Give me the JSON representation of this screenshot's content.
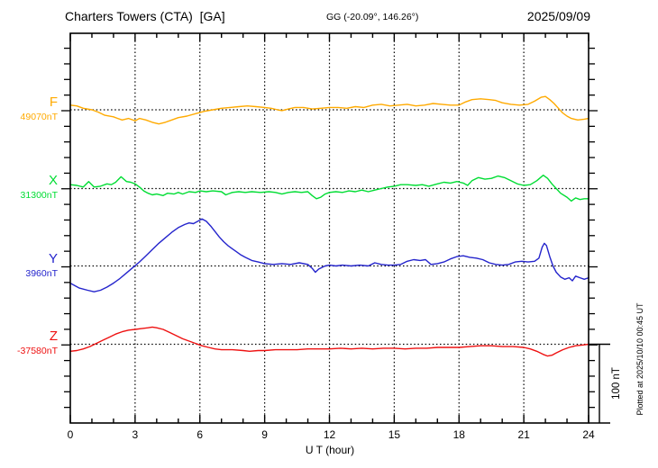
{
  "header": {
    "station_title": "Charters Towers (CTA)  [GA]",
    "coordinates": "GG (-20.09°, 146.26°)",
    "date": "2025/09/09"
  },
  "axis": {
    "xlabel": "U T (hour)",
    "x_tick_labels": [
      "0",
      "3",
      "6",
      "9",
      "12",
      "15",
      "18",
      "21",
      "24"
    ],
    "x_tick_hours": [
      0,
      3,
      6,
      9,
      12,
      15,
      18,
      21,
      24
    ],
    "scale_bar_label": "100 nT"
  },
  "footer_note": "Plotted at 2025/10/10 00:45 UT",
  "components": [
    {
      "label": "F",
      "value_label": "49070nT",
      "color": "#ffaa00"
    },
    {
      "label": "X",
      "value_label": "31300nT",
      "color": "#00dd33"
    },
    {
      "label": "Y",
      "value_label": "3960nT",
      "color": "#2424cc"
    },
    {
      "label": "Z",
      "value_label": "-37580nT",
      "color": "#ee1111"
    }
  ],
  "chart_data": {
    "type": "line",
    "title": "Charters Towers (CTA)  [GA] magnetogram 2025/09/09",
    "xlabel": "U T (hour)",
    "x_range": [
      0,
      24
    ],
    "grid_hours": [
      3,
      6,
      9,
      12,
      15,
      18,
      21
    ],
    "minor_tick_hours": 1,
    "y_division_nT": 20,
    "scale_bar_nT": 100,
    "legend_position": "left",
    "series": [
      {
        "name": "F",
        "baseline_nT": 49070,
        "color": "#ffaa00",
        "points": [
          [
            0,
            6
          ],
          [
            0.3,
            5
          ],
          [
            0.6,
            2
          ],
          [
            1,
            0
          ],
          [
            1.3,
            -3
          ],
          [
            1.6,
            -7
          ],
          [
            2,
            -9
          ],
          [
            2.2,
            -11
          ],
          [
            2.4,
            -13
          ],
          [
            2.7,
            -11
          ],
          [
            3,
            -14
          ],
          [
            3.2,
            -11
          ],
          [
            3.5,
            -13
          ],
          [
            3.8,
            -16
          ],
          [
            4.1,
            -18
          ],
          [
            4.4,
            -16
          ],
          [
            4.7,
            -13
          ],
          [
            5,
            -10
          ],
          [
            5.4,
            -8
          ],
          [
            5.8,
            -5
          ],
          [
            6.2,
            -2
          ],
          [
            6.6,
            0
          ],
          [
            7,
            2
          ],
          [
            7.4,
            3
          ],
          [
            7.8,
            4
          ],
          [
            8.2,
            5
          ],
          [
            8.6,
            4
          ],
          [
            9,
            3
          ],
          [
            9.3,
            2
          ],
          [
            9.6,
            0
          ],
          [
            9.8,
            -1
          ],
          [
            10.1,
            1
          ],
          [
            10.4,
            3
          ],
          [
            10.8,
            3
          ],
          [
            11.2,
            1
          ],
          [
            11.6,
            2
          ],
          [
            12,
            3
          ],
          [
            12.4,
            3
          ],
          [
            12.8,
            2
          ],
          [
            13.2,
            4
          ],
          [
            13.6,
            3
          ],
          [
            14,
            6
          ],
          [
            14.4,
            7
          ],
          [
            14.8,
            5
          ],
          [
            15.2,
            6
          ],
          [
            15.6,
            7
          ],
          [
            16,
            5
          ],
          [
            16.4,
            6
          ],
          [
            16.8,
            8
          ],
          [
            17.2,
            7
          ],
          [
            17.6,
            6
          ],
          [
            18,
            6
          ],
          [
            18.3,
            10
          ],
          [
            18.6,
            13
          ],
          [
            19,
            14
          ],
          [
            19.4,
            13
          ],
          [
            19.7,
            12
          ],
          [
            20,
            9
          ],
          [
            20.4,
            7
          ],
          [
            20.8,
            6
          ],
          [
            21.2,
            7
          ],
          [
            21.5,
            11
          ],
          [
            21.8,
            16
          ],
          [
            22,
            17
          ],
          [
            22.2,
            13
          ],
          [
            22.4,
            8
          ],
          [
            22.6,
            2
          ],
          [
            22.8,
            -4
          ],
          [
            23,
            -8
          ],
          [
            23.2,
            -11
          ],
          [
            23.5,
            -13
          ],
          [
            23.8,
            -12
          ],
          [
            24,
            -11
          ]
        ]
      },
      {
        "name": "X",
        "baseline_nT": 31300,
        "color": "#00dd33",
        "points": [
          [
            0,
            5
          ],
          [
            0.3,
            4
          ],
          [
            0.6,
            2
          ],
          [
            0.85,
            9
          ],
          [
            1.1,
            2
          ],
          [
            1.4,
            3
          ],
          [
            1.7,
            6
          ],
          [
            1.9,
            5
          ],
          [
            2.1,
            8
          ],
          [
            2.35,
            15
          ],
          [
            2.6,
            9
          ],
          [
            2.8,
            8
          ],
          [
            3,
            6
          ],
          [
            3.2,
            2
          ],
          [
            3.4,
            -3
          ],
          [
            3.6,
            -6
          ],
          [
            3.8,
            -8
          ],
          [
            4,
            -7
          ],
          [
            4.3,
            -9
          ],
          [
            4.5,
            -6
          ],
          [
            4.8,
            -7
          ],
          [
            5,
            -5
          ],
          [
            5.2,
            -7
          ],
          [
            5.5,
            -4
          ],
          [
            5.8,
            -5
          ],
          [
            6,
            -3
          ],
          [
            6.3,
            -4
          ],
          [
            6.6,
            -3
          ],
          [
            7,
            -4
          ],
          [
            7.2,
            -8
          ],
          [
            7.5,
            -5
          ],
          [
            7.8,
            -4
          ],
          [
            8.1,
            -5
          ],
          [
            8.4,
            -4
          ],
          [
            8.8,
            -5
          ],
          [
            9.2,
            -4
          ],
          [
            9.5,
            -5
          ],
          [
            9.8,
            -7
          ],
          [
            10.1,
            -5
          ],
          [
            10.4,
            -4
          ],
          [
            10.7,
            -5
          ],
          [
            11,
            -4
          ],
          [
            11.2,
            -9
          ],
          [
            11.4,
            -13
          ],
          [
            11.6,
            -11
          ],
          [
            11.8,
            -7
          ],
          [
            12,
            -5
          ],
          [
            12.3,
            -4
          ],
          [
            12.6,
            -5
          ],
          [
            12.9,
            -3
          ],
          [
            13.2,
            -4
          ],
          [
            13.5,
            -2
          ],
          [
            13.8,
            -4
          ],
          [
            14.1,
            -2
          ],
          [
            14.4,
            0
          ],
          [
            14.7,
            2
          ],
          [
            15,
            3
          ],
          [
            15.3,
            5
          ],
          [
            15.6,
            5
          ],
          [
            16,
            4
          ],
          [
            16.3,
            5
          ],
          [
            16.6,
            3
          ],
          [
            17,
            6
          ],
          [
            17.3,
            8
          ],
          [
            17.6,
            7
          ],
          [
            17.9,
            9
          ],
          [
            18.2,
            7
          ],
          [
            18.4,
            4
          ],
          [
            18.6,
            10
          ],
          [
            18.9,
            14
          ],
          [
            19.2,
            12
          ],
          [
            19.5,
            13
          ],
          [
            19.8,
            16
          ],
          [
            20.1,
            14
          ],
          [
            20.4,
            10
          ],
          [
            20.7,
            6
          ],
          [
            21,
            4
          ],
          [
            21.3,
            5
          ],
          [
            21.6,
            10
          ],
          [
            21.9,
            17
          ],
          [
            22.1,
            13
          ],
          [
            22.3,
            6
          ],
          [
            22.5,
            0
          ],
          [
            22.7,
            -6
          ],
          [
            23,
            -11
          ],
          [
            23.2,
            -16
          ],
          [
            23.4,
            -12
          ],
          [
            23.6,
            -14
          ],
          [
            23.8,
            -13
          ],
          [
            24,
            -13
          ]
        ]
      },
      {
        "name": "Y",
        "baseline_nT": 3960,
        "color": "#2424cc",
        "points": [
          [
            0,
            -22
          ],
          [
            0.4,
            -28
          ],
          [
            0.8,
            -31
          ],
          [
            1.1,
            -33
          ],
          [
            1.4,
            -31
          ],
          [
            1.7,
            -27
          ],
          [
            2,
            -22
          ],
          [
            2.3,
            -16
          ],
          [
            2.6,
            -9
          ],
          [
            2.9,
            -2
          ],
          [
            3.2,
            5
          ],
          [
            3.5,
            13
          ],
          [
            3.8,
            21
          ],
          [
            4.1,
            29
          ],
          [
            4.4,
            36
          ],
          [
            4.7,
            43
          ],
          [
            5,
            49
          ],
          [
            5.3,
            53
          ],
          [
            5.5,
            55
          ],
          [
            5.7,
            54
          ],
          [
            5.9,
            57
          ],
          [
            6.1,
            60
          ],
          [
            6.3,
            57
          ],
          [
            6.5,
            51
          ],
          [
            6.7,
            44
          ],
          [
            6.9,
            37
          ],
          [
            7.1,
            31
          ],
          [
            7.3,
            26
          ],
          [
            7.5,
            22
          ],
          [
            7.7,
            18
          ],
          [
            7.9,
            14
          ],
          [
            8.1,
            11
          ],
          [
            8.4,
            7
          ],
          [
            8.7,
            5
          ],
          [
            9,
            3
          ],
          [
            9.4,
            2
          ],
          [
            9.8,
            3
          ],
          [
            10.2,
            2
          ],
          [
            10.6,
            4
          ],
          [
            11,
            2
          ],
          [
            11.2,
            -3
          ],
          [
            11.35,
            -8
          ],
          [
            11.5,
            -4
          ],
          [
            11.8,
            0
          ],
          [
            12,
            1
          ],
          [
            12.3,
            0
          ],
          [
            12.6,
            1
          ],
          [
            13,
            0
          ],
          [
            13.4,
            1
          ],
          [
            13.8,
            0
          ],
          [
            14.1,
            4
          ],
          [
            14.4,
            2
          ],
          [
            14.7,
            1
          ],
          [
            15,
            1
          ],
          [
            15.3,
            2
          ],
          [
            15.6,
            6
          ],
          [
            15.9,
            8
          ],
          [
            16.2,
            7
          ],
          [
            16.45,
            8
          ],
          [
            16.7,
            2
          ],
          [
            17,
            3
          ],
          [
            17.3,
            5
          ],
          [
            17.6,
            9
          ],
          [
            17.9,
            12
          ],
          [
            18.2,
            13
          ],
          [
            18.5,
            11
          ],
          [
            18.8,
            10
          ],
          [
            19.1,
            8
          ],
          [
            19.4,
            4
          ],
          [
            19.7,
            2
          ],
          [
            20,
            1
          ],
          [
            20.3,
            2
          ],
          [
            20.6,
            5
          ],
          [
            20.9,
            6
          ],
          [
            21.2,
            5
          ],
          [
            21.5,
            6
          ],
          [
            21.7,
            10
          ],
          [
            21.85,
            24
          ],
          [
            21.95,
            29
          ],
          [
            22.05,
            26
          ],
          [
            22.2,
            12
          ],
          [
            22.35,
            0
          ],
          [
            22.5,
            -8
          ],
          [
            22.7,
            -14
          ],
          [
            22.9,
            -17
          ],
          [
            23.1,
            -15
          ],
          [
            23.25,
            -19
          ],
          [
            23.4,
            -13
          ],
          [
            23.6,
            -15
          ],
          [
            23.8,
            -17
          ],
          [
            24,
            -15
          ]
        ]
      },
      {
        "name": "Z",
        "baseline_nT": -37580,
        "color": "#ee1111",
        "points": [
          [
            0,
            -9
          ],
          [
            0.3,
            -8
          ],
          [
            0.6,
            -6
          ],
          [
            0.9,
            -3
          ],
          [
            1.2,
            1
          ],
          [
            1.5,
            5
          ],
          [
            1.8,
            9
          ],
          [
            2.1,
            13
          ],
          [
            2.4,
            16
          ],
          [
            2.7,
            18
          ],
          [
            3,
            19
          ],
          [
            3.3,
            20
          ],
          [
            3.6,
            21
          ],
          [
            3.8,
            22
          ],
          [
            4,
            21
          ],
          [
            4.3,
            19
          ],
          [
            4.6,
            15
          ],
          [
            4.9,
            11
          ],
          [
            5.2,
            7
          ],
          [
            5.5,
            4
          ],
          [
            5.8,
            1
          ],
          [
            6.1,
            -2
          ],
          [
            6.4,
            -4
          ],
          [
            6.7,
            -6
          ],
          [
            7,
            -7
          ],
          [
            7.5,
            -7
          ],
          [
            8,
            -8
          ],
          [
            8.3,
            -9
          ],
          [
            8.7,
            -8
          ],
          [
            9,
            -8
          ],
          [
            9.5,
            -7
          ],
          [
            10,
            -7
          ],
          [
            10.5,
            -7
          ],
          [
            11,
            -6
          ],
          [
            11.5,
            -6
          ],
          [
            12,
            -6
          ],
          [
            12.5,
            -5
          ],
          [
            13,
            -6
          ],
          [
            13.5,
            -5
          ],
          [
            14,
            -6
          ],
          [
            14.5,
            -5
          ],
          [
            15,
            -5
          ],
          [
            15.5,
            -6
          ],
          [
            16,
            -5
          ],
          [
            16.5,
            -5
          ],
          [
            17,
            -4
          ],
          [
            17.5,
            -4
          ],
          [
            18,
            -4
          ],
          [
            18.5,
            -3
          ],
          [
            19,
            -2
          ],
          [
            19.5,
            -2
          ],
          [
            20,
            -3
          ],
          [
            20.5,
            -3
          ],
          [
            21,
            -4
          ],
          [
            21.3,
            -6
          ],
          [
            21.6,
            -9
          ],
          [
            21.9,
            -13
          ],
          [
            22.1,
            -15
          ],
          [
            22.3,
            -14
          ],
          [
            22.5,
            -11
          ],
          [
            22.8,
            -7
          ],
          [
            23.1,
            -4
          ],
          [
            23.4,
            -2
          ],
          [
            23.7,
            -1
          ],
          [
            24,
            0
          ]
        ]
      }
    ]
  }
}
